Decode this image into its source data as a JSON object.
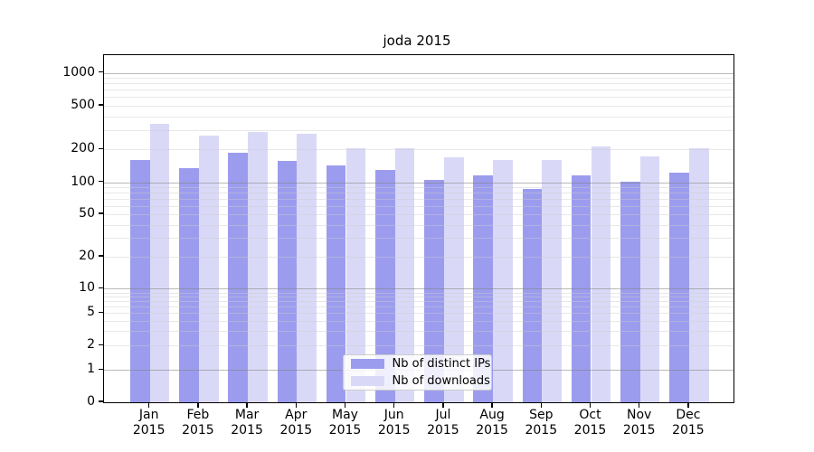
{
  "title": "joda 2015",
  "chart_data": {
    "type": "bar",
    "title": "joda 2015",
    "scale": "symlog",
    "grid": true,
    "legend_position": "lower center",
    "ylim": [
      0,
      1500
    ],
    "y_ticks": [
      0,
      1,
      2,
      5,
      10,
      20,
      50,
      100,
      200,
      500,
      1000
    ],
    "categories": [
      "Jan",
      "Feb",
      "Mar",
      "Apr",
      "May",
      "Jun",
      "Jul",
      "Aug",
      "Sep",
      "Oct",
      "Nov",
      "Dec"
    ],
    "category_year": "2015",
    "series": [
      {
        "name": "Nb of distinct IPs",
        "color": "#9c9cee",
        "values": [
          161,
          135,
          185,
          158,
          143,
          130,
          106,
          115,
          87,
          115,
          101,
          123
        ]
      },
      {
        "name": "Nb of downloads",
        "color": "#d9d9f7",
        "values": [
          340,
          265,
          288,
          278,
          206,
          203,
          169,
          161,
          161,
          212,
          171,
          206
        ]
      }
    ]
  },
  "colors": {
    "major_grid": "#ababab",
    "minor_grid": "#e9e9e9",
    "axis": "#000000",
    "background": "#ffffff"
  }
}
